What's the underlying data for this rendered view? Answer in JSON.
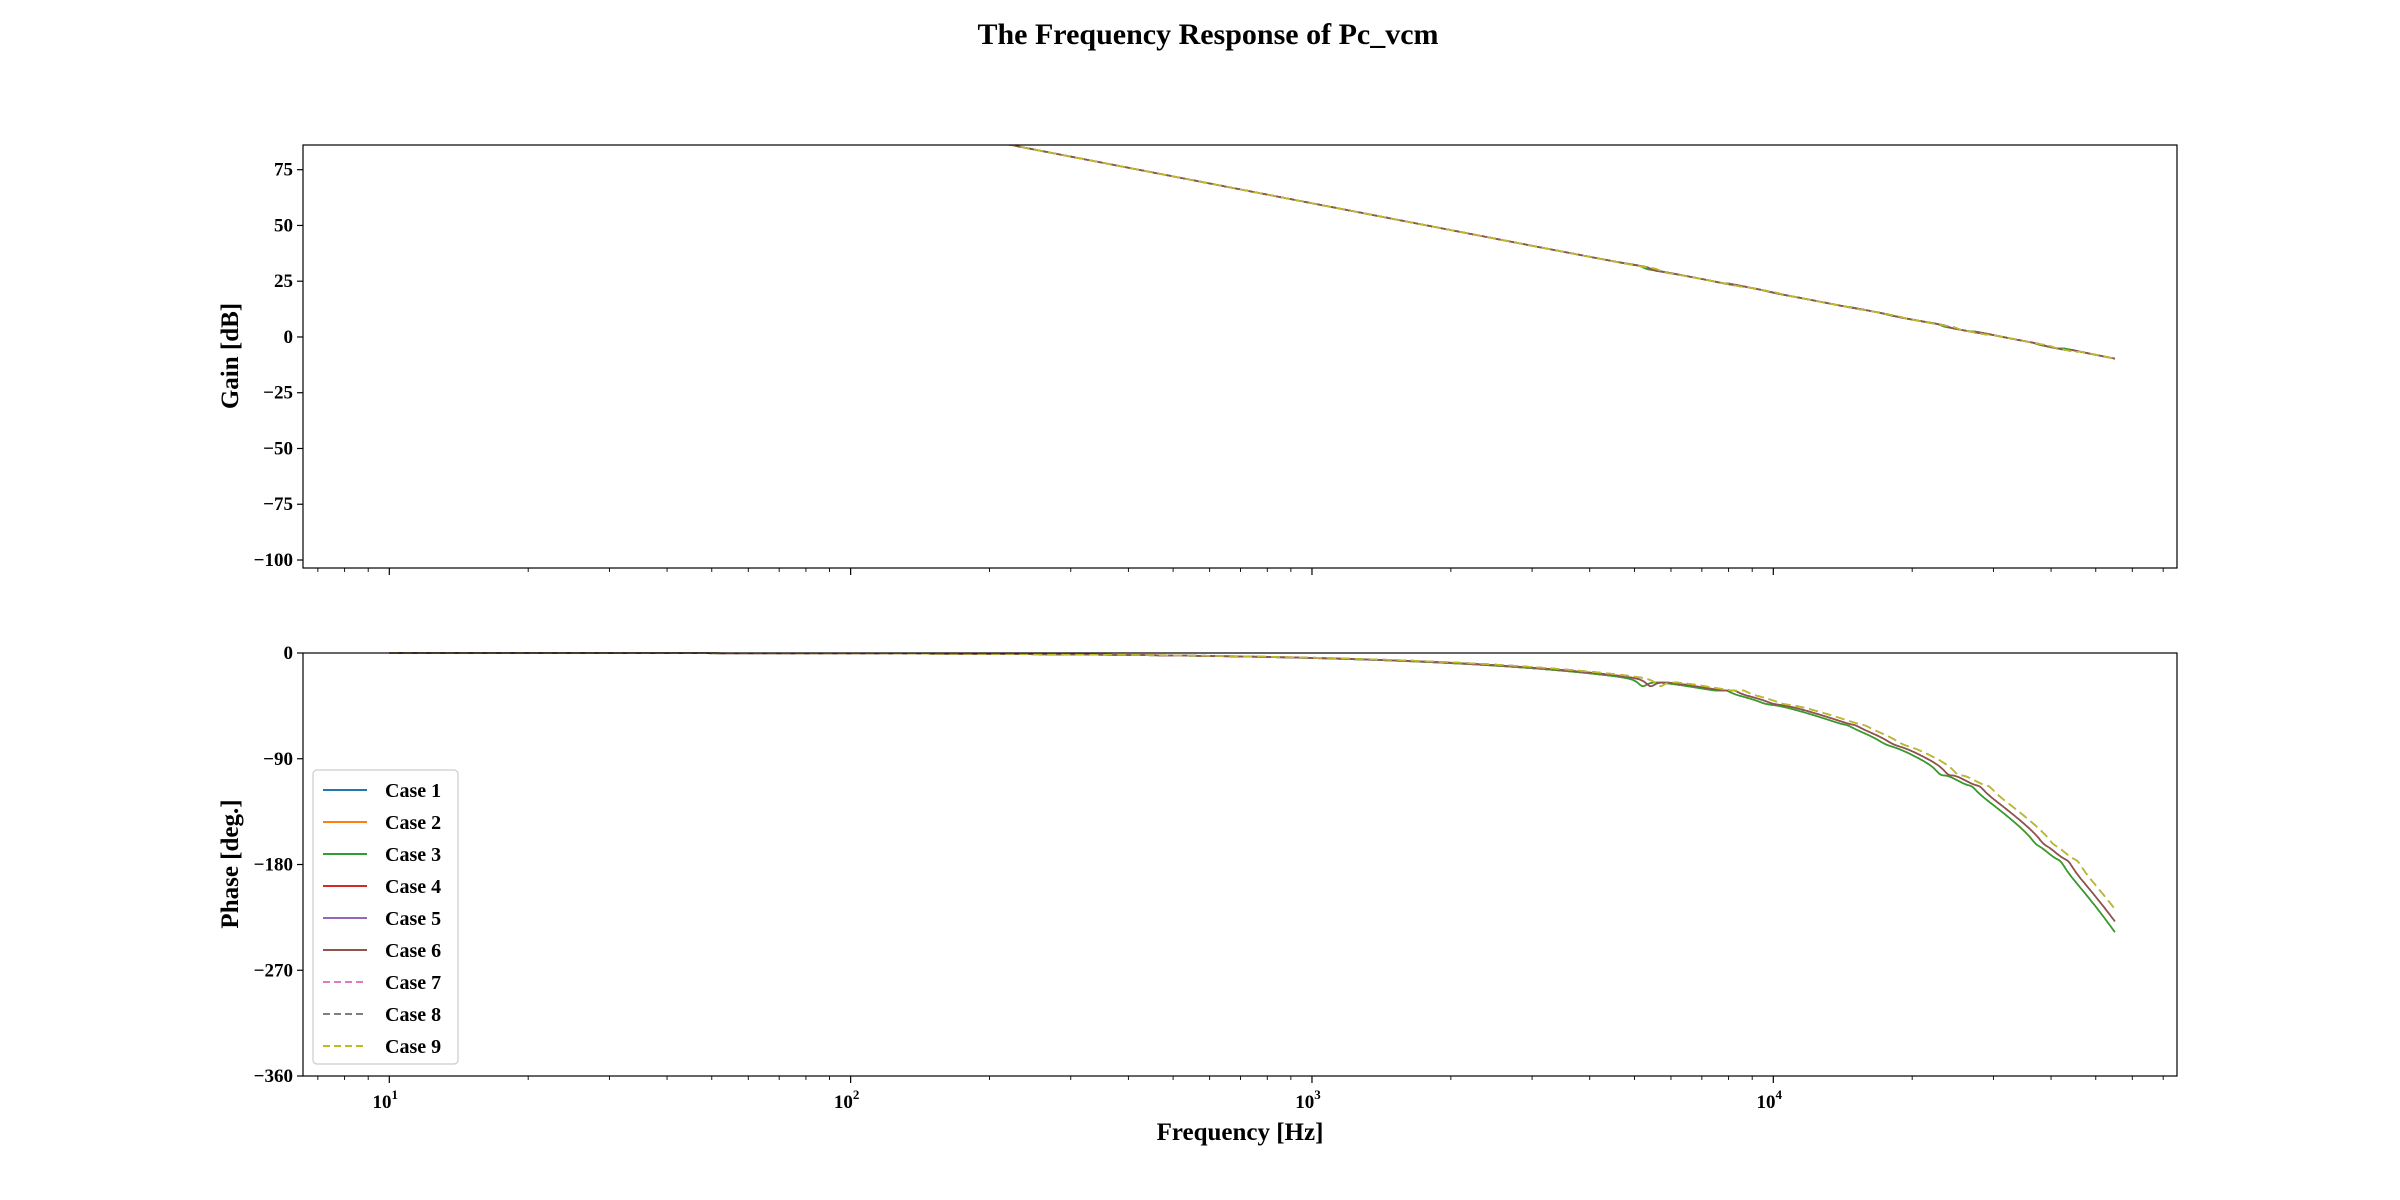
{
  "title": "The Frequency Response of Pc_vcm",
  "chart_data": [
    {
      "type": "line",
      "panel": "gain",
      "ylabel": "Gain [dB]",
      "xscale": "log",
      "xlim": [
        6.5,
        75000
      ],
      "ylim": [
        -102,
        90
      ],
      "yticks": [
        75,
        50,
        25,
        0,
        -25,
        -50,
        -75,
        -100
      ],
      "ytick_labels": [
        "75",
        "50",
        "25",
        "0",
        "−25",
        "−50",
        "−75",
        "−100"
      ],
      "grid": false,
      "resonance_centers": [
        5000,
        7200,
        10000,
        17000,
        26000,
        42000
      ],
      "case_freq_scale": [
        1.0,
        1.0,
        1.0,
        1.04,
        1.04,
        1.04,
        1.09,
        1.09,
        1.09
      ]
    },
    {
      "type": "line",
      "panel": "phase",
      "ylabel": "Phase [deg.]",
      "xlabel": "Frequency [Hz]",
      "xscale": "log",
      "xlim": [
        6.5,
        75000
      ],
      "ylim": [
        -360,
        0
      ],
      "yticks": [
        0,
        -90,
        -180,
        -270,
        -360
      ],
      "ytick_labels": [
        "0",
        "−90",
        "−180",
        "−270",
        "−360"
      ],
      "xtick_labels": [
        {
          "base": "10",
          "exp": "1",
          "value": 10
        },
        {
          "base": "10",
          "exp": "2",
          "value": 100
        },
        {
          "base": "10",
          "exp": "3",
          "value": 1000
        },
        {
          "base": "10",
          "exp": "4",
          "value": 10000
        }
      ],
      "grid": false,
      "legend_position": "lower-left"
    }
  ],
  "series": [
    {
      "name": "Case 1",
      "color": "#1f77b4",
      "dashed": false
    },
    {
      "name": "Case 2",
      "color": "#ff7f0e",
      "dashed": false
    },
    {
      "name": "Case 3",
      "color": "#2ca02c",
      "dashed": false
    },
    {
      "name": "Case 4",
      "color": "#d62728",
      "dashed": false
    },
    {
      "name": "Case 5",
      "color": "#9467bd",
      "dashed": false
    },
    {
      "name": "Case 6",
      "color": "#8c564b",
      "dashed": false
    },
    {
      "name": "Case 7",
      "color": "#e377c2",
      "dashed": true
    },
    {
      "name": "Case 8",
      "color": "#7f7f7f",
      "dashed": true
    },
    {
      "name": "Case 9",
      "color": "#bcbd22",
      "dashed": true
    }
  ]
}
